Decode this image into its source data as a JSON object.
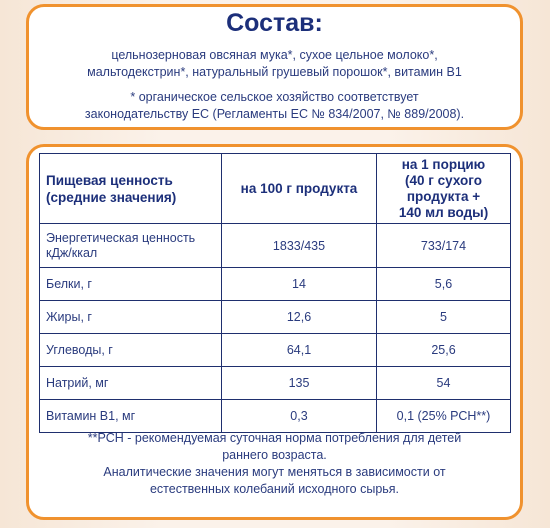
{
  "composition": {
    "title": "Состав:",
    "ingredients_line1": "цельнозерновая овсяная мука*, сухое цельное молоко*,",
    "ingredients_line2": "мальтодекстрин*, натуральный грушевый порошок*, витамин В1",
    "note_line1": "* органическое сельское хозяйство соответствует",
    "note_line2": "законодательству ЕС (Регламенты ЕС № 834/2007, № 889/2008)."
  },
  "nutrition": {
    "header": {
      "col1_line1": "Пищевая ценность",
      "col1_line2": "(средние значения)",
      "col2": "на 100 г продукта",
      "col3_line1": "на 1 порцию",
      "col3_line2": "(40 г сухого",
      "col3_line3": "продукта +",
      "col3_line4": "140 мл воды)"
    },
    "energy": {
      "label_line1": "Энергетическая ценность",
      "label_line2": "кДж/ккал",
      "per100": "1833/435",
      "per_portion": "733/174"
    },
    "rows": [
      {
        "label": "Белки, г",
        "per100": "14",
        "per_portion": "5,6"
      },
      {
        "label": "Жиры, г",
        "per100": "12,6",
        "per_portion": "5"
      },
      {
        "label": "Углеводы, г",
        "per100": "64,1",
        "per_portion": "25,6"
      },
      {
        "label": "Натрий, мг",
        "per100": "135",
        "per_portion": "54"
      },
      {
        "label": "Витамин В1, мг",
        "per100": "0,3",
        "per_portion": "0,1 (25% РСН**)"
      }
    ],
    "footnote_line1": "**РСН - рекомендуемая суточная норма потребления для детей",
    "footnote_line2": "раннего возраста.",
    "footnote_line3": "Аналитические значения могут меняться в зависимости от",
    "footnote_line4": "естественных колебаний исходного сырья."
  },
  "colors": {
    "border": "#f0922e",
    "text": "#1c2f7a",
    "background": "#fbf2ea"
  }
}
